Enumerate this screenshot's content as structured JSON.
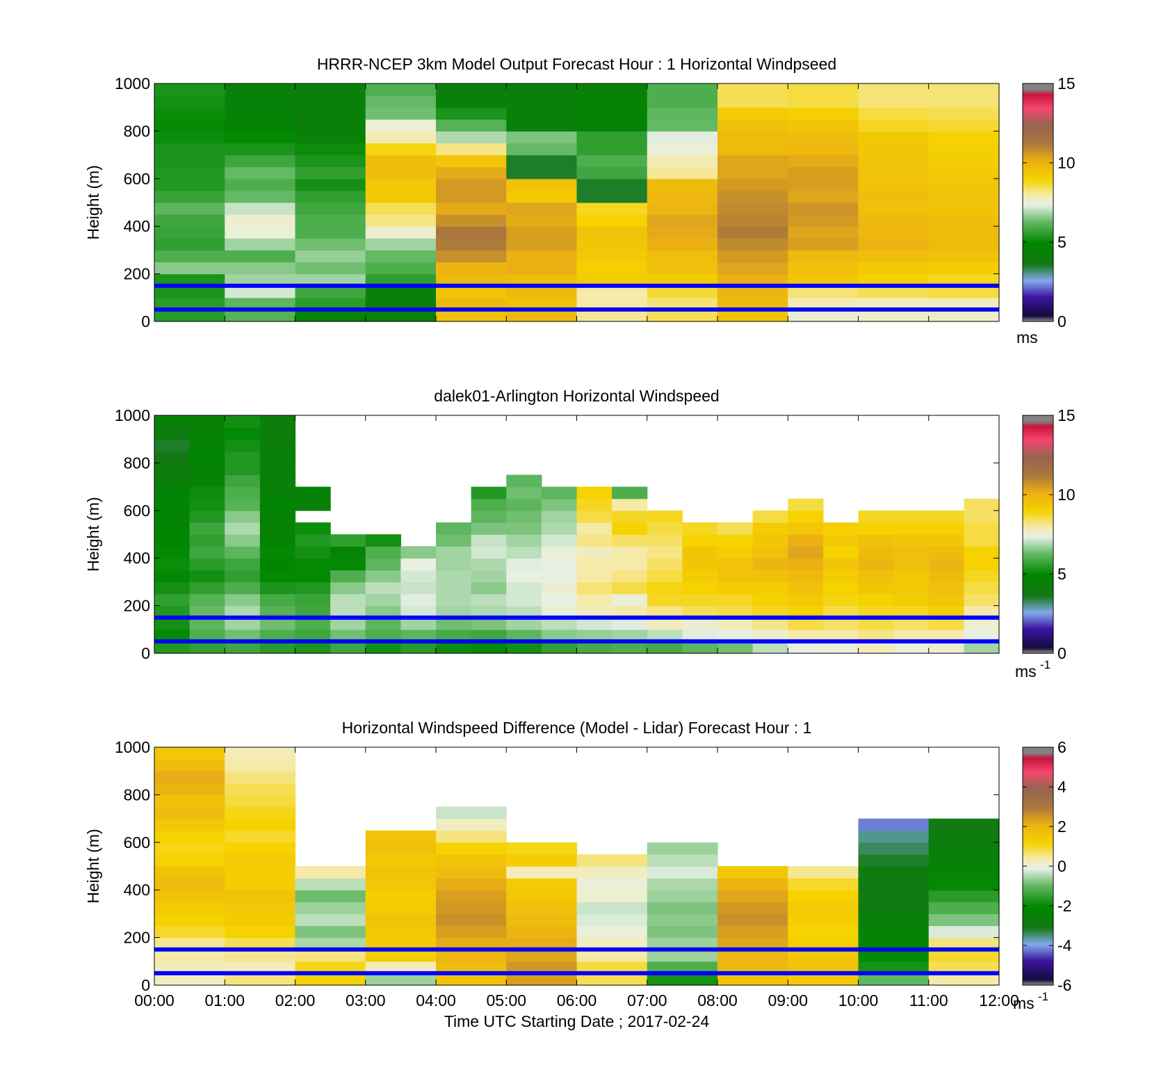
{
  "chart_data": [
    {
      "type": "heatmap",
      "title": "HRRR-NCEP 3km Model Output   Forecast Hour : 1 Horizontal Windpseed",
      "ylabel": "Height (m)",
      "xlabel": "",
      "ylim": [
        0,
        1000
      ],
      "yticks": [
        "0",
        "200",
        "400",
        "600",
        "800",
        "1000"
      ],
      "xticks_shown": false,
      "colorbar": {
        "ticks": [
          "0",
          "5",
          "10",
          "15"
        ],
        "range": [
          0,
          15
        ],
        "unit": "ms"
      },
      "x_bins": [
        "00:00",
        "01:00",
        "02:00",
        "03:00",
        "04:00",
        "05:00",
        "06:00",
        "07:00",
        "08:00",
        "09:00",
        "10:00",
        "11:00"
      ],
      "heights": [
        0,
        50,
        100,
        150,
        200,
        250,
        300,
        350,
        400,
        450,
        500,
        550,
        600,
        650,
        700,
        750,
        800,
        850,
        900,
        950
      ],
      "values": [
        [
          5.5,
          5.5,
          5.3,
          5.3,
          6.6,
          6.0,
          5.6,
          5.7,
          5.8,
          6.2,
          5.7,
          5.4,
          5.4,
          5.3,
          5.3,
          5.1,
          5.0,
          5.1,
          5.2,
          5.3
        ],
        [
          6.1,
          6.2,
          7.2,
          6.8,
          6.6,
          6.0,
          6.8,
          7.5,
          7.6,
          7.1,
          6.3,
          6.0,
          6.3,
          5.8,
          5.3,
          5.0,
          4.6,
          4.6,
          4.4,
          4.4
        ],
        [
          4.6,
          5.5,
          5.8,
          6.8,
          6.4,
          6.7,
          6.4,
          6.0,
          6.0,
          5.8,
          5.6,
          5.2,
          5.6,
          5.3,
          5.1,
          4.5,
          4.3,
          4.3,
          4.2,
          4.3
        ],
        [
          4.3,
          4.2,
          4.4,
          5.6,
          6.0,
          6.3,
          6.8,
          7.6,
          8.2,
          8.5,
          9.3,
          9.3,
          9.7,
          9.7,
          8.9,
          7.9,
          7.5,
          6.4,
          6.3,
          6.0
        ],
        [
          9.6,
          9.8,
          9.4,
          9.8,
          10.0,
          10.8,
          11.2,
          11.3,
          10.8,
          10.3,
          10.6,
          10.6,
          10.3,
          9.4,
          8.2,
          6.9,
          6.1,
          5.3,
          4.2,
          4.2
        ],
        [
          9.9,
          9.6,
          9.8,
          9.7,
          10.2,
          10.2,
          10.5,
          10.5,
          10.3,
          10.4,
          9.3,
          9.6,
          3.5,
          3.5,
          6.3,
          6.5,
          4.3,
          4.4,
          4.2,
          4.2
        ],
        [
          8.1,
          8.0,
          8.0,
          9.2,
          9.1,
          9.3,
          9.4,
          9.5,
          9.0,
          8.8,
          3.5,
          3.5,
          5.8,
          6.0,
          5.6,
          5.6,
          4.6,
          4.6,
          4.5,
          4.5
        ],
        [
          8.5,
          8.3,
          8.7,
          9.2,
          9.6,
          9.7,
          10.2,
          10.3,
          10.4,
          10.0,
          9.9,
          9.8,
          8.1,
          7.9,
          7.5,
          7.3,
          6.3,
          6.2,
          6.0,
          6.0
        ],
        [
          9.5,
          9.8,
          10.0,
          10.1,
          10.4,
          10.6,
          10.9,
          11.2,
          11.0,
          10.9,
          10.8,
          10.6,
          10.4,
          10.4,
          9.8,
          9.8,
          9.6,
          9.2,
          8.5,
          8.5
        ],
        [
          7.6,
          7.9,
          8.3,
          9.4,
          9.6,
          9.9,
          10.5,
          10.4,
          10.6,
          10.7,
          10.4,
          10.5,
          10.5,
          10.3,
          9.9,
          9.7,
          9.4,
          9.1,
          8.6,
          8.6
        ],
        [
          7.7,
          7.8,
          8.5,
          9.0,
          9.3,
          9.7,
          10.1,
          9.9,
          9.9,
          9.6,
          9.7,
          9.5,
          9.5,
          9.5,
          9.4,
          9.3,
          8.8,
          8.6,
          8.3,
          8.3
        ],
        [
          7.7,
          7.8,
          8.6,
          8.8,
          9.2,
          9.6,
          9.8,
          9.8,
          9.7,
          9.5,
          9.5,
          9.4,
          9.3,
          9.2,
          9.1,
          9.0,
          8.7,
          8.5,
          8.3,
          8.3
        ]
      ]
    },
    {
      "type": "heatmap",
      "title": "dalek01-Arlington  Horizontal Windspeed",
      "ylabel": "Height (m)",
      "xlabel": "",
      "ylim": [
        0,
        1000
      ],
      "yticks": [
        "0",
        "200",
        "400",
        "600",
        "800",
        "1000"
      ],
      "xticks_shown": false,
      "colorbar": {
        "ticks": [
          "0",
          "5",
          "10",
          "15"
        ],
        "range": [
          0,
          15
        ],
        "unit": "ms",
        "unit_exponent": "-1"
      },
      "x_bins": [
        "00:00",
        "00:30",
        "01:00",
        "01:30",
        "02:00",
        "02:30",
        "03:00",
        "03:30",
        "04:00",
        "04:30",
        "05:00",
        "05:30",
        "06:00",
        "06:30",
        "07:00",
        "07:30",
        "08:00",
        "08:30",
        "09:00",
        "09:30",
        "10:00",
        "10:30",
        "11:00",
        "11:30"
      ],
      "heights": [
        0,
        50,
        100,
        150,
        200,
        250,
        300,
        350,
        400,
        450,
        500,
        550,
        600,
        650,
        700,
        750,
        800,
        850,
        900,
        950
      ],
      "values": [
        [
          5.4,
          5.0,
          5.2,
          5.4,
          5.6,
          5.2,
          5.0,
          5.1,
          5.0,
          4.9,
          4.8,
          4.7,
          4.8,
          4.6,
          4.3,
          4.0,
          3.7,
          3.5,
          4.0,
          4.6
        ],
        [
          5.6,
          6.0,
          6.2,
          6.3,
          6.1,
          5.6,
          5.2,
          5.5,
          5.8,
          5.6,
          5.8,
          5.4,
          5.2,
          5.1,
          4.5,
          4.6,
          4.8,
          4.7,
          4.5,
          4.5
        ],
        [
          5.8,
          6.4,
          6.8,
          6.9,
          6.6,
          6.0,
          5.6,
          5.8,
          6.2,
          6.6,
          6.9,
          6.6,
          6.1,
          6.0,
          5.8,
          5.4,
          5.4,
          5.2,
          5.0,
          5.2
        ],
        [
          5.5,
          6.0,
          6.4,
          6.1,
          5.9,
          5.3,
          5.0,
          4.9,
          5.0,
          4.6,
          4.5,
          4.6,
          4.8,
          4.5,
          4.3,
          4.4,
          4.4,
          4.3,
          4.1,
          4.2
        ],
        [
          5.3,
          5.8,
          6.0,
          5.8,
          5.7,
          5.4,
          5.0,
          5.0,
          5.2,
          5.4,
          5.1,
          null,
          4.4,
          4.7,
          null,
          null,
          null,
          null,
          null,
          null
        ],
        [
          5.8,
          6.4,
          6.8,
          7.0,
          7.0,
          6.6,
          6.0,
          5.0,
          4.7,
          5.6,
          null,
          null,
          null,
          null,
          null,
          null,
          null,
          null,
          null,
          null
        ],
        [
          5.2,
          6.0,
          6.2,
          6.6,
          6.8,
          7.0,
          6.6,
          6.2,
          6.0,
          5.2,
          null,
          null,
          null,
          null,
          null,
          null,
          null,
          null,
          null,
          null
        ],
        [
          5.5,
          6.2,
          6.8,
          7.2,
          7.3,
          7.1,
          7.2,
          7.4,
          6.6,
          null,
          null,
          null,
          null,
          null,
          null,
          null,
          null,
          null,
          null,
          null
        ],
        [
          5.1,
          5.9,
          6.4,
          6.8,
          6.9,
          6.9,
          6.9,
          6.8,
          6.8,
          6.4,
          6.2,
          null,
          null,
          null,
          null,
          null,
          null,
          null,
          null,
          null
        ],
        [
          5.0,
          5.8,
          6.5,
          6.9,
          7.0,
          6.6,
          6.8,
          6.9,
          7.2,
          7.1,
          6.5,
          6.2,
          6.0,
          5.4,
          null,
          null,
          null,
          null,
          null,
          null
        ],
        [
          5.2,
          6.2,
          6.8,
          7.0,
          7.2,
          7.2,
          7.4,
          7.3,
          7.0,
          6.8,
          6.5,
          6.4,
          6.2,
          6.4,
          6.2,
          null,
          null,
          null,
          null,
          null
        ],
        [
          5.6,
          6.6,
          7.0,
          7.5,
          7.4,
          7.6,
          7.4,
          7.4,
          7.5,
          7.2,
          6.9,
          6.8,
          6.5,
          6.2,
          null,
          null,
          null,
          null,
          null,
          null
        ],
        [
          5.9,
          6.7,
          7.2,
          7.8,
          8.0,
          8.3,
          8.0,
          8.0,
          7.8,
          8.2,
          8.0,
          8.6,
          8.8,
          9.0,
          null,
          null,
          null,
          null,
          null,
          null
        ],
        [
          6.0,
          6.8,
          7.3,
          8.0,
          7.5,
          8.6,
          8.2,
          8.0,
          8.0,
          8.4,
          9.0,
          8.8,
          8.0,
          6.0,
          null,
          null,
          null,
          null,
          null,
          null
        ],
        [
          5.9,
          7.0,
          7.8,
          8.2,
          8.8,
          8.9,
          8.6,
          8.4,
          8.2,
          8.4,
          8.6,
          8.8,
          null,
          null,
          null,
          null,
          null,
          null,
          null,
          null
        ],
        [
          6.2,
          7.3,
          7.6,
          8.5,
          8.8,
          9.0,
          9.2,
          9.4,
          9.4,
          9.0,
          8.8,
          null,
          null,
          null,
          null,
          null,
          null,
          null,
          null,
          null
        ],
        [
          6.4,
          7.4,
          7.9,
          8.6,
          8.8,
          9.2,
          9.5,
          9.5,
          9.2,
          9.0,
          8.5,
          null,
          null,
          null,
          null,
          null,
          null,
          null,
          null,
          null
        ],
        [
          7.0,
          7.6,
          8.2,
          8.8,
          9.1,
          9.2,
          9.6,
          10.0,
          9.6,
          9.4,
          9.2,
          8.6,
          null,
          null,
          null,
          null,
          null,
          null,
          null,
          null
        ],
        [
          7.4,
          8.0,
          8.6,
          9.0,
          9.3,
          9.6,
          9.8,
          10.2,
          10.4,
          10.2,
          9.4,
          9.0,
          8.6,
          null,
          null,
          null,
          null,
          null,
          null,
          null
        ],
        [
          7.5,
          8.0,
          8.4,
          8.6,
          8.9,
          9.0,
          9.2,
          9.4,
          9.0,
          9.3,
          9.1,
          null,
          null,
          null,
          null,
          null,
          null,
          null,
          null,
          null
        ],
        [
          7.8,
          8.2,
          8.6,
          8.8,
          9.0,
          9.4,
          9.6,
          10.0,
          9.8,
          9.6,
          9.0,
          8.8,
          null,
          null,
          null,
          null,
          null,
          null,
          null,
          null
        ],
        [
          7.5,
          8.0,
          8.4,
          8.8,
          9.2,
          9.3,
          9.4,
          9.6,
          9.7,
          9.4,
          9.0,
          8.8,
          null,
          null,
          null,
          null,
          null,
          null,
          null,
          null
        ],
        [
          7.6,
          8.0,
          8.6,
          9.1,
          9.4,
          9.6,
          9.8,
          10.0,
          9.8,
          9.4,
          9.0,
          8.8,
          null,
          null,
          null,
          null,
          null,
          null,
          null,
          null
        ],
        [
          6.8,
          7.4,
          7.6,
          8.0,
          8.4,
          8.6,
          8.8,
          9.0,
          9.0,
          8.6,
          8.6,
          8.4,
          8.4,
          null,
          null,
          null,
          null,
          null,
          null,
          null
        ]
      ]
    },
    {
      "type": "heatmap",
      "title": "Horizontal Windspeed Difference (Model - Lidar) Forecast Hour : 1",
      "ylabel": "Height (m)",
      "xlabel": "Time UTC  Starting Date ; 2017-02-24",
      "ylim": [
        0,
        1000
      ],
      "yticks": [
        "0",
        "200",
        "400",
        "600",
        "800",
        "1000"
      ],
      "xticks": [
        "00:00",
        "01:00",
        "02:00",
        "03:00",
        "04:00",
        "05:00",
        "06:00",
        "07:00",
        "08:00",
        "09:00",
        "10:00",
        "11:00",
        "12:00"
      ],
      "colorbar": {
        "ticks": [
          "-6",
          "-4",
          "-2",
          "0",
          "2",
          "4",
          "6"
        ],
        "range": [
          -6,
          6
        ],
        "unit": "ms",
        "unit_exponent": "-1"
      },
      "x_bins": [
        "00:00",
        "01:00",
        "02:00",
        "03:00",
        "04:00",
        "05:00",
        "06:00",
        "07:00",
        "08:00",
        "09:00",
        "10:00",
        "11:00"
      ],
      "heights": [
        0,
        50,
        100,
        150,
        200,
        250,
        300,
        350,
        400,
        450,
        500,
        550,
        600,
        650,
        700,
        750,
        800,
        850,
        900,
        950
      ],
      "values": [
        [
          0.2,
          0.3,
          0.4,
          0.5,
          1.0,
          1.2,
          1.4,
          1.6,
          1.8,
          1.6,
          1.2,
          1.1,
          1.2,
          1.5,
          1.8,
          1.6,
          2.0,
          2.2,
          1.8,
          1.5
        ],
        [
          0.6,
          0.3,
          0.5,
          0.8,
          1.2,
          1.4,
          1.5,
          1.6,
          1.3,
          1.3,
          1.4,
          1.2,
          1.0,
          1.2,
          1.1,
          0.9,
          0.8,
          0.6,
          0.4,
          0.3
        ],
        [
          1.2,
          1.1,
          0.6,
          -0.5,
          -0.8,
          -0.4,
          -0.6,
          -0.9,
          -0.4,
          0.4,
          null,
          null,
          null,
          null,
          null,
          null,
          null,
          null,
          null,
          null
        ],
        [
          -0.6,
          0.3,
          1.3,
          1.4,
          1.5,
          1.6,
          1.4,
          1.3,
          1.5,
          1.6,
          1.5,
          1.7,
          1.6,
          null,
          null,
          null,
          null,
          null,
          null,
          null
        ],
        [
          1.6,
          1.8,
          2.0,
          2.2,
          2.4,
          2.6,
          2.5,
          2.4,
          2.2,
          1.8,
          1.6,
          1.2,
          0.6,
          0.2,
          -0.3,
          null,
          null,
          null,
          null,
          null
        ],
        [
          2.4,
          2.5,
          2.3,
          2.2,
          2.0,
          1.8,
          1.7,
          1.5,
          1.4,
          0.3,
          1.3,
          1.1,
          null,
          null,
          null,
          null,
          null,
          null,
          null,
          null
        ],
        [
          0.8,
          0.9,
          0.4,
          0.2,
          0.0,
          -0.2,
          -0.3,
          0.1,
          0.0,
          0.2,
          0.6,
          null,
          null,
          null,
          null,
          null,
          null,
          null,
          null,
          null
        ],
        [
          -1.8,
          -1.2,
          -0.6,
          -0.6,
          -0.8,
          -0.7,
          -0.8,
          -0.6,
          -0.5,
          -0.2,
          -0.4,
          -0.6,
          null,
          null,
          null,
          null,
          null,
          null,
          null,
          null
        ],
        [
          1.6,
          1.9,
          2.0,
          2.3,
          2.4,
          2.6,
          2.5,
          2.3,
          2.0,
          1.5,
          null,
          null,
          null,
          null,
          null,
          null,
          null,
          null,
          null,
          null
        ],
        [
          1.4,
          1.6,
          1.5,
          1.3,
          1.2,
          1.3,
          1.4,
          1.2,
          1.0,
          0.5,
          null,
          null,
          null,
          null,
          null,
          null,
          null,
          null,
          null,
          null
        ],
        [
          -1.0,
          -1.8,
          -2.0,
          -2.2,
          -2.4,
          -2.6,
          -2.8,
          -3.0,
          -3.0,
          -2.8,
          -3.2,
          -3.4,
          -3.6,
          -4.2,
          null,
          null,
          null,
          null,
          null,
          null
        ],
        [
          0.4,
          0.8,
          1.0,
          0.6,
          -0.2,
          -0.8,
          -1.2,
          -1.6,
          -2.0,
          -2.2,
          -2.4,
          -2.6,
          -2.8,
          -3.0,
          null,
          null,
          null,
          null,
          null,
          null
        ]
      ]
    }
  ]
}
